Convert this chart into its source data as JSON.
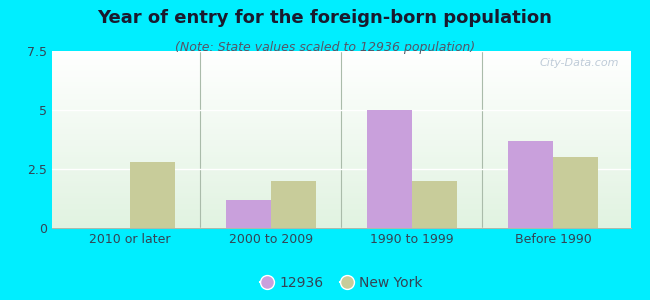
{
  "title": "Year of entry for the foreign-born population",
  "subtitle": "(Note: State values scaled to 12936 population)",
  "categories": [
    "2010 or later",
    "2000 to 2009",
    "1990 to 1999",
    "Before 1990"
  ],
  "values_12936": [
    0,
    1.2,
    5.0,
    3.7
  ],
  "values_ny": [
    2.8,
    2.0,
    2.0,
    3.0
  ],
  "color_12936": "#c9a0dc",
  "color_ny": "#c8cc9a",
  "background_outer": "#00eeff",
  "ylim": [
    0,
    7.5
  ],
  "yticks": [
    0,
    2.5,
    5,
    7.5
  ],
  "bar_width": 0.32,
  "legend_label_1": "12936",
  "legend_label_2": "New York",
  "watermark": "City-Data.com",
  "title_fontsize": 13,
  "subtitle_fontsize": 9,
  "tick_fontsize": 9,
  "legend_fontsize": 10,
  "title_color": "#1a1a2e",
  "subtitle_color": "#555566",
  "tick_color": "#334455"
}
